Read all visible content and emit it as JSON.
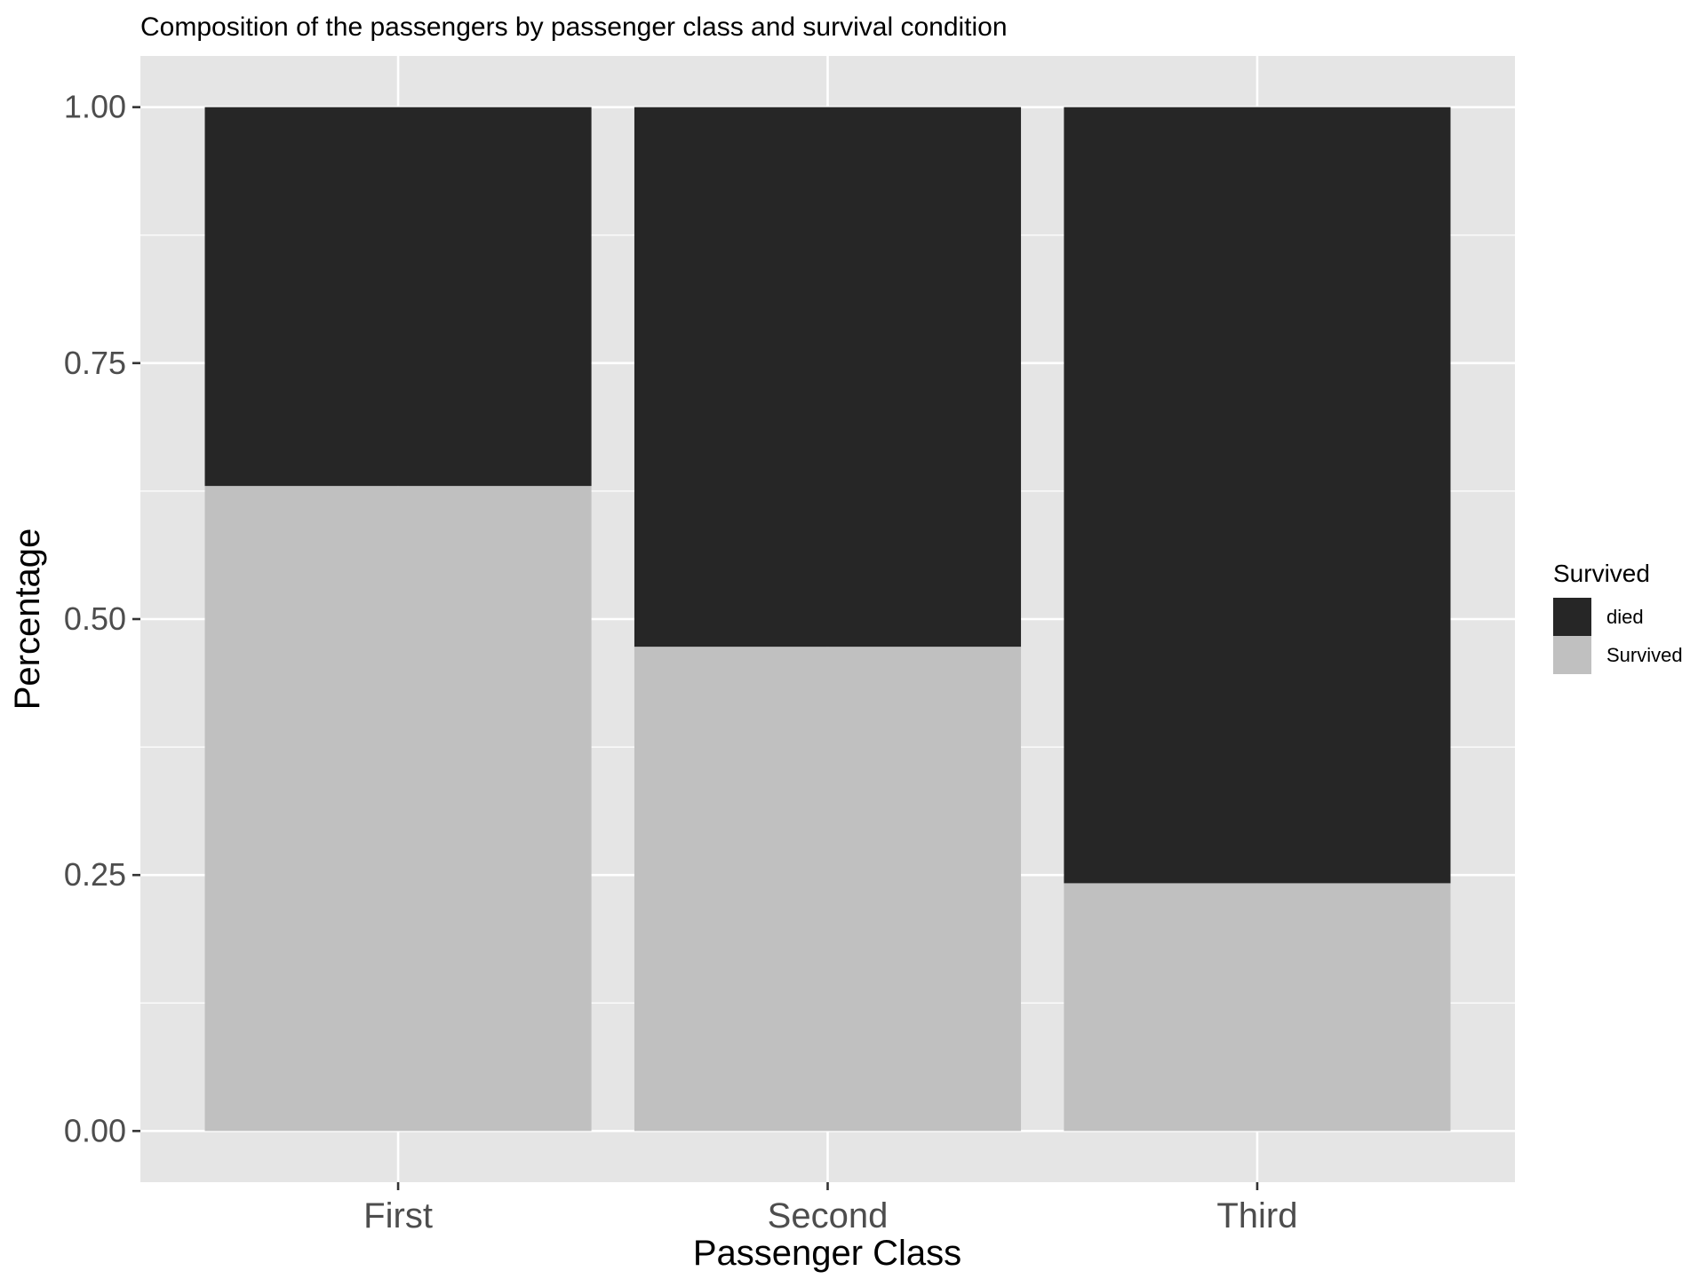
{
  "chart_data": {
    "type": "bar",
    "stacked": true,
    "title": "Composition of the passengers by passenger class and survival condition",
    "xlabel": "Passenger Class",
    "ylabel": "Percentage",
    "categories": [
      "First",
      "Second",
      "Third"
    ],
    "series": [
      {
        "name": "died",
        "values": [
          0.37,
          0.527,
          0.758
        ],
        "color": "#262626"
      },
      {
        "name": "Survived",
        "values": [
          0.63,
          0.473,
          0.242
        ],
        "color": "#C0C0C0"
      }
    ],
    "stack_order_bottom_to_top": [
      "Survived",
      "died"
    ],
    "ylim": [
      -0.05,
      1.05
    ],
    "yticks": [
      0.0,
      0.25,
      0.5,
      0.75,
      1.0
    ],
    "ytick_labels": [
      "0.00",
      "0.25",
      "0.50",
      "0.75",
      "1.00"
    ],
    "legend": {
      "title": "Survived",
      "entries": [
        "died",
        "Survived"
      ],
      "placement": "right"
    },
    "grid": true,
    "panel_background": "#E5E5E5",
    "gridline_color": "#FFFFFF"
  }
}
